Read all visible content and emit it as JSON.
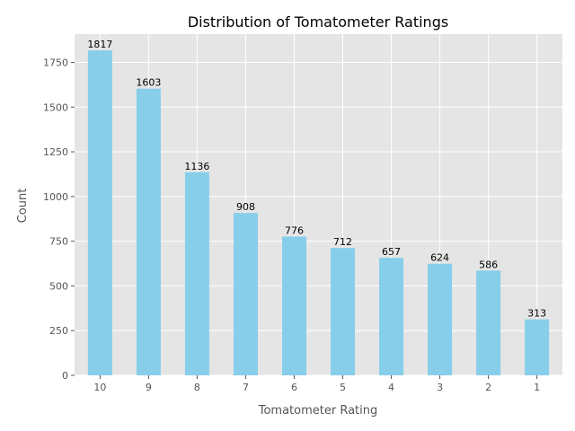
{
  "chart_data": {
    "type": "bar",
    "title": "Distribution of Tomatometer Ratings",
    "xlabel": "Tomatometer Rating",
    "ylabel": "Count",
    "categories": [
      "10",
      "9",
      "8",
      "7",
      "6",
      "5",
      "4",
      "3",
      "2",
      "1"
    ],
    "values": [
      1817,
      1603,
      1136,
      908,
      776,
      712,
      657,
      624,
      586,
      313
    ],
    "ylim": [
      0,
      1908
    ],
    "yticks": [
      0,
      250,
      500,
      750,
      1000,
      1250,
      1500,
      1750
    ],
    "grid": true,
    "data_labels": true,
    "colors": {
      "bar": "#87ceeb",
      "plot_background": "#e5e5e5",
      "grid": "#ffffff"
    }
  }
}
